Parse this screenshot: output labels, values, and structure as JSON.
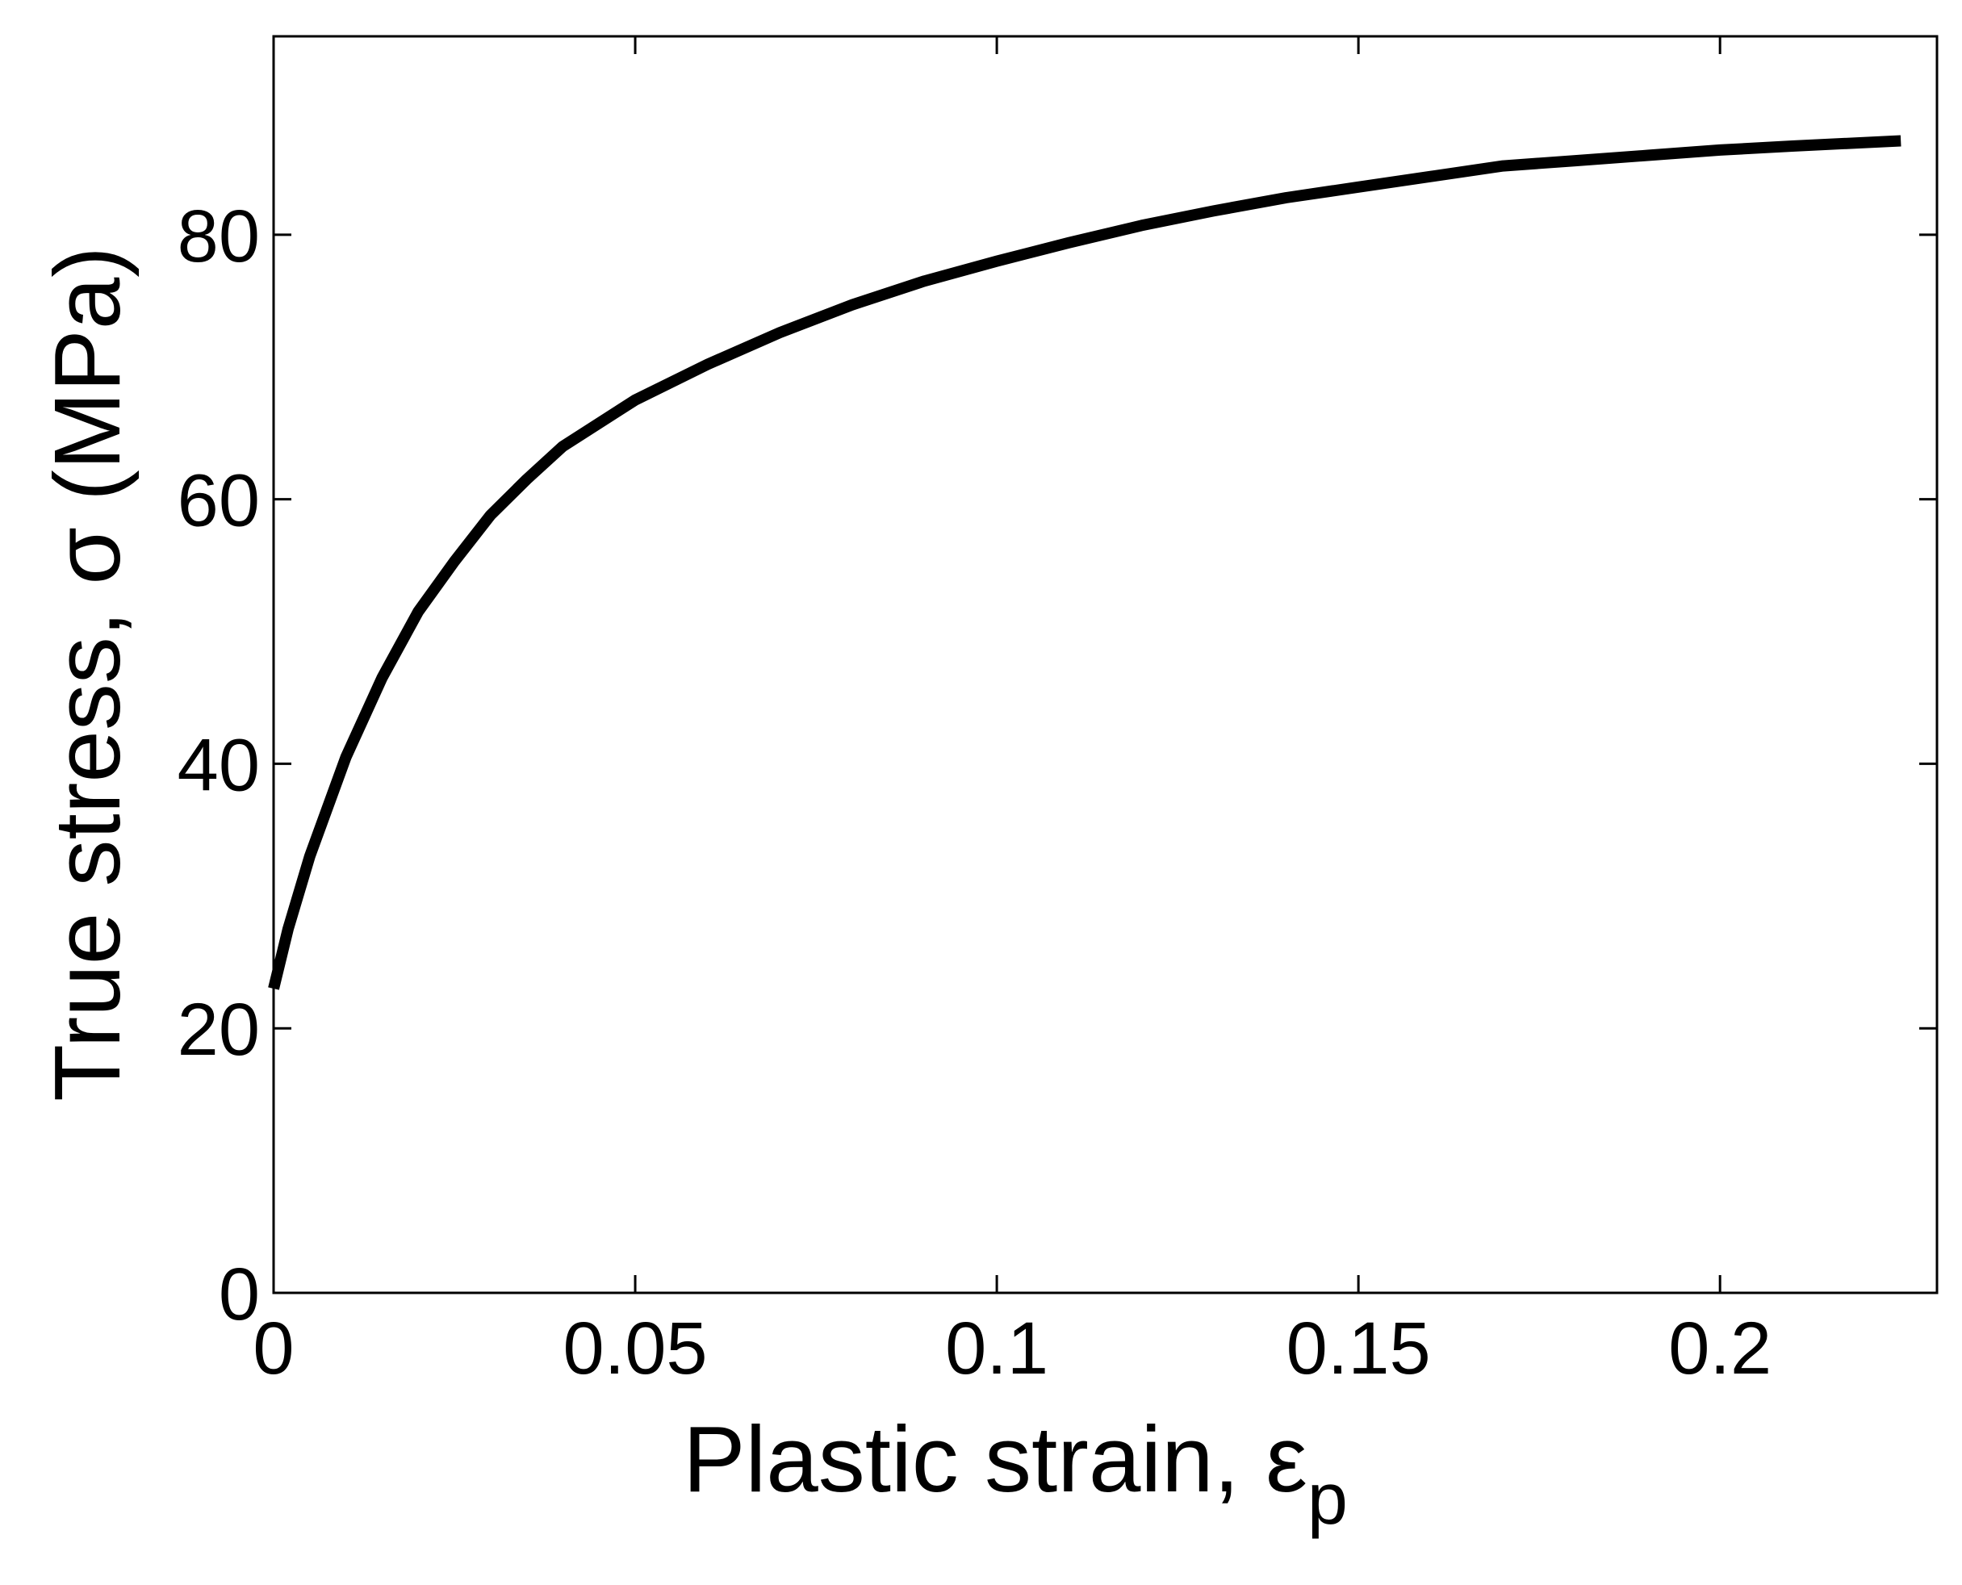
{
  "chart_data": {
    "type": "line",
    "title": "",
    "xlabel": "Plastic strain, ε",
    "xlabel_subscript": "p",
    "ylabel": "True stress, σ (MPa)",
    "xlim": [
      0,
      0.23
    ],
    "ylim": [
      0,
      95
    ],
    "xticks": [
      0,
      0.05,
      0.1,
      0.15,
      0.2
    ],
    "xtick_labels": [
      "0",
      "0.05",
      "0.1",
      "0.15",
      "0.2"
    ],
    "yticks": [
      0,
      20,
      40,
      60,
      80
    ],
    "ytick_labels": [
      "0",
      "20",
      "40",
      "60",
      "80"
    ],
    "grid": false,
    "line_color": "#000000",
    "series": [
      {
        "x": [
          0,
          0.002,
          0.005,
          0.01,
          0.015,
          0.02,
          0.025,
          0.03,
          0.035,
          0.04,
          0.05,
          0.06,
          0.07,
          0.08,
          0.09,
          0.1,
          0.11,
          0.12,
          0.13,
          0.14,
          0.15,
          0.16,
          0.17,
          0.18,
          0.19,
          0.2,
          0.21,
          0.225
        ],
        "y": [
          23,
          27.5,
          33,
          40.5,
          46.5,
          51.5,
          55.3,
          58.8,
          61.5,
          64,
          67.5,
          70.2,
          72.6,
          74.7,
          76.5,
          78,
          79.4,
          80.7,
          81.8,
          82.8,
          83.6,
          84.4,
          85.2,
          85.6,
          86,
          86.4,
          86.7,
          87.1
        ]
      }
    ]
  }
}
